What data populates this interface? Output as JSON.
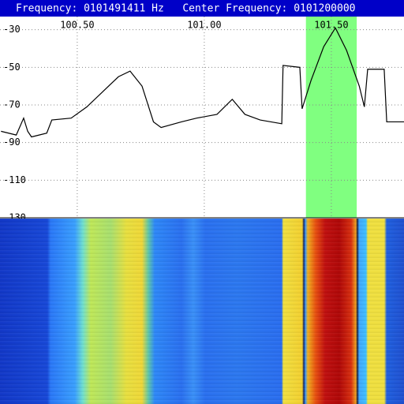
{
  "header": {
    "text": "Frequency: 0101491411 Hz   Center Frequency: 0101200000"
  },
  "chart_data": {
    "type": "line",
    "x": [
      100.2,
      100.26,
      100.289,
      100.305,
      100.32,
      100.38,
      100.4,
      100.476,
      100.538,
      100.6,
      100.662,
      100.708,
      100.755,
      100.8,
      100.83,
      100.91,
      100.97,
      101.05,
      101.11,
      101.16,
      101.22,
      101.305,
      101.31,
      101.376,
      101.385,
      101.42,
      101.47,
      101.516,
      101.56,
      101.61,
      101.63,
      101.643,
      101.708,
      101.718,
      101.786
    ],
    "values": [
      -84,
      -86,
      -77,
      -84,
      -87,
      -85,
      -78,
      -77,
      -71,
      -63,
      -55,
      -52,
      -60,
      -79,
      -82,
      -79,
      -77,
      -75,
      -67,
      -75,
      -78,
      -80,
      -49,
      -50,
      -72,
      -57,
      -39,
      -29,
      -41,
      -60,
      -71,
      -51,
      -51,
      -79,
      -79
    ],
    "color": "#000000",
    "xlim": [
      100.196,
      101.786
    ],
    "ylim": [
      -130,
      -23
    ],
    "xticks": [
      {
        "value": 100.5,
        "label": "100.50"
      },
      {
        "value": 101.0,
        "label": "101.00"
      },
      {
        "value": 101.5,
        "label": "101.50"
      }
    ],
    "yticks": [
      -30,
      -50,
      -70,
      -90,
      -110,
      -130
    ],
    "grid": true,
    "selection": [
      101.4,
      101.6
    ],
    "selection_color": "#80ff80"
  }
}
